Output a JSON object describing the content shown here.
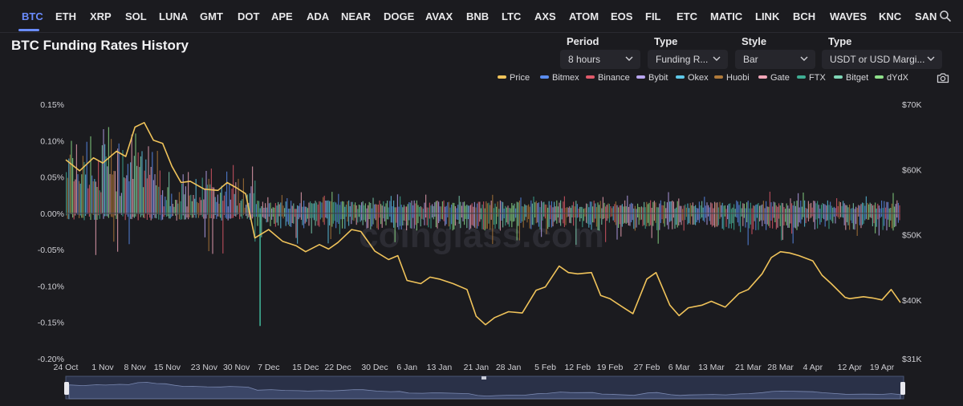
{
  "tabs": [
    "BTC",
    "ETH",
    "XRP",
    "SOL",
    "LUNA",
    "GMT",
    "DOT",
    "APE",
    "ADA",
    "NEAR",
    "DOGE",
    "AVAX",
    "BNB",
    "LTC",
    "AXS",
    "ATOM",
    "EOS",
    "FIL",
    "ETC",
    "MATIC",
    "LINK",
    "BCH",
    "WAVES",
    "KNC",
    "SAN"
  ],
  "active_tab": "BTC",
  "title": "BTC Funding Rates History",
  "controls": {
    "period": {
      "label": "Period",
      "value": "8 hours"
    },
    "type": {
      "label": "Type",
      "value": "Funding R..."
    },
    "style": {
      "label": "Style",
      "value": "Bar"
    },
    "margin": {
      "label": "Type",
      "value": "USDT or USD Margi..."
    }
  },
  "icons": {
    "search": "search-icon",
    "camera": "camera-icon",
    "chevron": "chevron-down-icon"
  },
  "watermark": "coinglass.com",
  "colors": {
    "accent": "#6a8cff",
    "price": "#f0c35a",
    "background": "#1b1b1f"
  },
  "legend": [
    {
      "name": "Price",
      "color": "#f0c35a"
    },
    {
      "name": "Bitmex",
      "color": "#5b8def"
    },
    {
      "name": "Binance",
      "color": "#e05a6a"
    },
    {
      "name": "Bybit",
      "color": "#b9a6f0"
    },
    {
      "name": "Okex",
      "color": "#5ec8e8"
    },
    {
      "name": "Huobi",
      "color": "#b07a3a"
    },
    {
      "name": "Gate",
      "color": "#f2a6b8"
    },
    {
      "name": "FTX",
      "color": "#3fae94"
    },
    {
      "name": "Bitget",
      "color": "#7fd6b6"
    },
    {
      "name": "dYdX",
      "color": "#8fe08a"
    }
  ],
  "chart_data": {
    "type": "bar",
    "title": "BTC Funding Rates History",
    "x_tick_labels": [
      "24 Oct",
      "1 Nov",
      "8 Nov",
      "15 Nov",
      "23 Nov",
      "30 Nov",
      "7 Dec",
      "15 Dec",
      "22 Dec",
      "30 Dec",
      "6 Jan",
      "13 Jan",
      "21 Jan",
      "28 Jan",
      "5 Feb",
      "12 Feb",
      "19 Feb",
      "27 Feb",
      "6 Mar",
      "13 Mar",
      "21 Mar",
      "28 Mar",
      "4 Apr",
      "12 Apr",
      "19 Apr"
    ],
    "y_left_ticks": [
      "0.15%",
      "0.10%",
      "0.05%",
      "0.00%",
      "-0.05%",
      "-0.10%",
      "-0.15%",
      "-0.20%"
    ],
    "y_left_range": [
      -0.2,
      0.15
    ],
    "y_right_ticks": [
      "$70K",
      "$60K",
      "$50K",
      "$40K",
      "$31K"
    ],
    "y_right_range": [
      31000,
      70000
    ],
    "grid": false,
    "legend_position": "top-right",
    "price_series": {
      "name": "Price",
      "dates": [
        "24 Oct",
        "27 Oct",
        "30 Oct",
        "1 Nov",
        "4 Nov",
        "6 Nov",
        "8 Nov",
        "10 Nov",
        "12 Nov",
        "14 Nov",
        "16 Nov",
        "18 Nov",
        "20 Nov",
        "23 Nov",
        "26 Nov",
        "28 Nov",
        "30 Nov",
        "2 Dec",
        "4 Dec",
        "7 Dec",
        "10 Dec",
        "13 Dec",
        "15 Dec",
        "18 Dec",
        "20 Dec",
        "22 Dec",
        "25 Dec",
        "27 Dec",
        "30 Dec",
        "2 Jan",
        "4 Jan",
        "6 Jan",
        "9 Jan",
        "11 Jan",
        "13 Jan",
        "16 Jan",
        "19 Jan",
        "21 Jan",
        "23 Jan",
        "25 Jan",
        "28 Jan",
        "31 Jan",
        "3 Feb",
        "5 Feb",
        "8 Feb",
        "10 Feb",
        "12 Feb",
        "15 Feb",
        "17 Feb",
        "19 Feb",
        "22 Feb",
        "24 Feb",
        "27 Feb",
        "1 Mar",
        "4 Mar",
        "6 Mar",
        "8 Mar",
        "11 Mar",
        "13 Mar",
        "16 Mar",
        "19 Mar",
        "21 Mar",
        "24 Mar",
        "26 Mar",
        "28 Mar",
        "30 Mar",
        "1 Apr",
        "4 Apr",
        "6 Apr",
        "8 Apr",
        "11 Apr",
        "12 Apr",
        "15 Apr",
        "17 Apr",
        "19 Apr",
        "21 Apr",
        "23 Apr"
      ],
      "values": [
        61500,
        59800,
        61800,
        61000,
        62800,
        62000,
        66500,
        67200,
        64500,
        64000,
        60500,
        58000,
        58200,
        57000,
        56800,
        58000,
        57200,
        56300,
        49500,
        50800,
        49000,
        48300,
        47400,
        48500,
        47800,
        48800,
        50800,
        50500,
        47500,
        46200,
        46800,
        43000,
        42500,
        43500,
        43200,
        42500,
        41600,
        37500,
        36200,
        37300,
        38200,
        38000,
        41500,
        42000,
        45200,
        44200,
        44000,
        44200,
        40700,
        40200,
        38800,
        37900,
        43200,
        44200,
        39200,
        37600,
        38800,
        39200,
        39800,
        38900,
        41000,
        41600,
        44000,
        46500,
        47400,
        47200,
        46800,
        46000,
        43800,
        42500,
        40400,
        40200,
        40500,
        40300,
        40000,
        41600,
        39600
      ]
    },
    "funding_note": "Stacked per-exchange funding-rate bars: early period (24 Oct - 1 Dec) mostly positive 0.00%-0.10%, later period oscillating near 0.00% between about -0.03% and +0.02%; notable spike to about -0.16% around 5 Dec."
  }
}
